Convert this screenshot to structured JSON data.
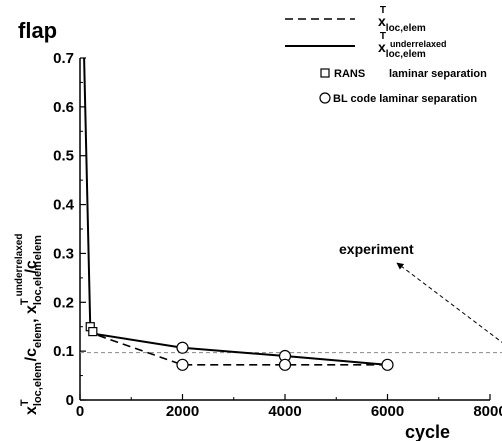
{
  "chart_data": {
    "type": "line",
    "title": "flap",
    "xlabel": "cycle",
    "ylabel": {
      "part1": {
        "x": "x",
        "sup": "T",
        "sub": "loc,elem"
      },
      "part2": "/c",
      "part2_sub": "elem",
      "sep": ", ",
      "part3": {
        "x": "x",
        "sup": "T",
        "sub": "loc,elem"
      },
      "part3_sup2": "underrelaxed",
      "part4": "/c",
      "part4_sub": "elem"
    },
    "xlim": [
      0,
      8000
    ],
    "ylim": [
      0,
      0.7
    ],
    "xticks": [
      0,
      2000,
      4000,
      6000,
      8000
    ],
    "yticks": [
      0,
      0.1,
      0.2,
      0.3,
      0.4,
      0.5,
      0.6,
      0.7
    ],
    "xtick_labels": [
      "0",
      "2000",
      "4000",
      "6000",
      "8000"
    ],
    "ytick_labels": [
      "0",
      "0.1",
      "0.2",
      "0.3",
      "0.4",
      "0.5",
      "0.6",
      "0.7"
    ],
    "series": [
      {
        "legend": {
          "x": "x",
          "sup": "T",
          "sub": "loc,elem"
        },
        "style": "dashed",
        "x": [
          200,
          250,
          2000,
          4000,
          6000
        ],
        "y": [
          0.15,
          0.136,
          0.072,
          0.072,
          0.072
        ]
      },
      {
        "legend": {
          "x": "x",
          "sup": "T",
          "sub": "loc,elem",
          "sub2": "underrelaxed"
        },
        "style": "solid",
        "x": [
          80,
          200,
          250,
          2000,
          4000,
          6000
        ],
        "y": [
          0.7,
          0.15,
          0.136,
          0.107,
          0.09,
          0.072
        ]
      }
    ],
    "markers": [
      {
        "name": "RANS laminar separation",
        "symbol": "square",
        "x": [
          200,
          250
        ],
        "y": [
          0.15,
          0.14
        ]
      },
      {
        "name": "BL code laminar separation",
        "symbol": "circle",
        "x": [
          2000,
          2000,
          4000,
          4000,
          6000
        ],
        "y": [
          0.107,
          0.072,
          0.09,
          0.072,
          0.072
        ]
      }
    ],
    "legend_labels": {
      "rans_label": "RANS",
      "rans_label2": "laminar separation",
      "bl_label": "BL code laminar separation"
    },
    "reference_line": {
      "y": 0.097,
      "label": "experiment",
      "style": "dashed-thin",
      "color": "#888888"
    },
    "annotation": {
      "text": "experiment",
      "arrow_from": [
        8500,
        0.097
      ],
      "arrow_to": [
        6800,
        0.25
      ]
    },
    "grid": false,
    "legend_position": "top-right"
  }
}
